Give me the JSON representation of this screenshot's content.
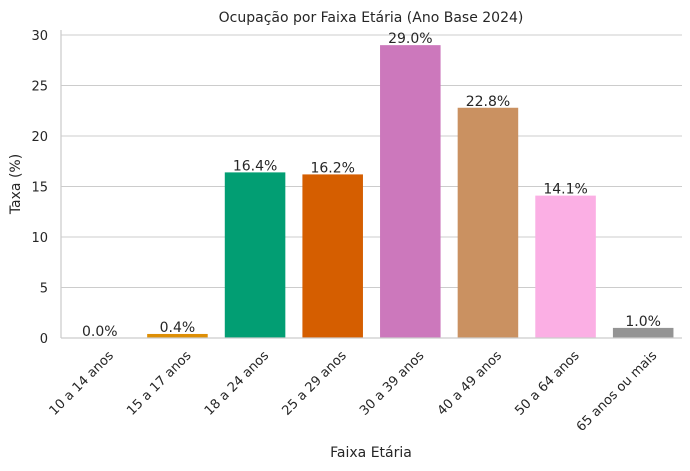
{
  "chart_data": {
    "type": "bar",
    "title": "Ocupação por Faixa Etária (Ano Base 2024)",
    "xlabel": "Faixa Etária",
    "ylabel": "Taxa (%)",
    "ylim": [
      0,
      30.5
    ],
    "yticks": [
      0,
      5,
      10,
      15,
      20,
      25,
      30
    ],
    "grid": "horizontal",
    "categories": [
      "10 a 14 anos",
      "15 a 17 anos",
      "18 a 24 anos",
      "25 a 29 anos",
      "30 a 39 anos",
      "40 a 49 anos",
      "50 a 64 anos",
      "65 anos ou mais"
    ],
    "values": [
      0.0,
      0.4,
      16.4,
      16.2,
      29.0,
      22.8,
      14.1,
      1.0
    ],
    "value_labels": [
      "0.0%",
      "0.4%",
      "16.4%",
      "16.2%",
      "29.0%",
      "22.8%",
      "14.1%",
      "1.0%"
    ],
    "colors": [
      "#0173b2",
      "#de8f05",
      "#029e73",
      "#d55e00",
      "#cc78bc",
      "#ca9161",
      "#fbafe4",
      "#949494"
    ]
  }
}
